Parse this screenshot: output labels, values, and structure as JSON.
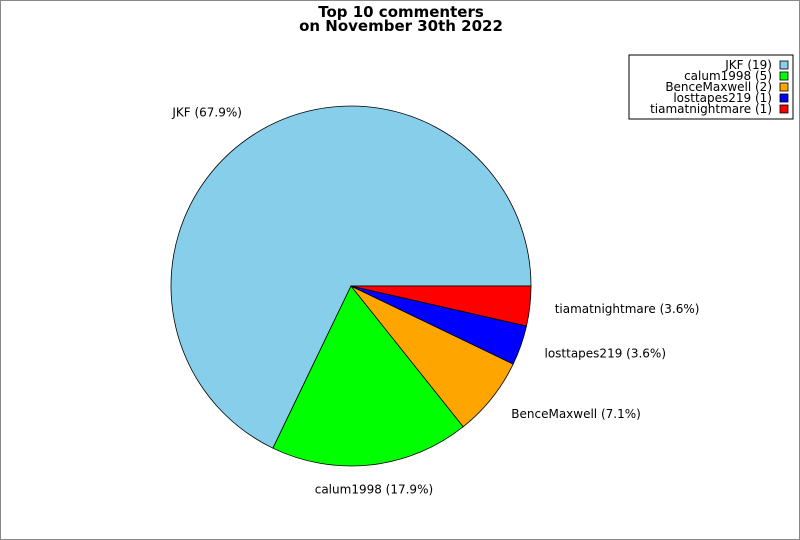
{
  "chart_data": {
    "type": "pie",
    "title": [
      "Top 10 commenters",
      "on November 30th 2022"
    ],
    "categories": [
      "JKF",
      "calum1998",
      "BenceMaxwell",
      "losttapes219",
      "tiamatnightmare"
    ],
    "values": [
      19,
      5,
      2,
      1,
      1
    ],
    "slice_labels": [
      "JKF (67.9%)",
      "calum1998 (17.9%)",
      "BenceMaxwell (7.1%)",
      "losttapes219 (3.6%)",
      "tiamatnightmare (3.6%)"
    ],
    "legend_labels": [
      "JKF (19)",
      "calum1998 (5)",
      "BenceMaxwell (2)",
      "losttapes219 (1)",
      "tiamatnightmare (1)"
    ],
    "colors": [
      "#87ceeb",
      "#00ff00",
      "#ffa500",
      "#0000ff",
      "#ff0000"
    ],
    "legend_position": "top-right",
    "start_angle": "3 o'clock, counterclockwise"
  }
}
